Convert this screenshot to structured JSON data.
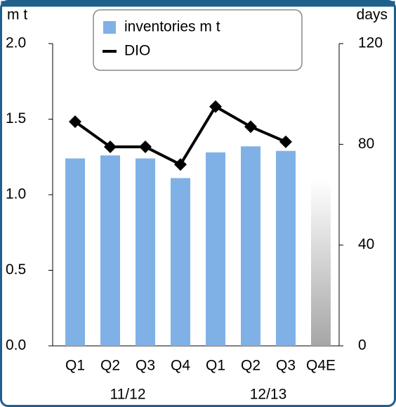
{
  "chart_data": {
    "type": "bar_line",
    "y_label": "m t",
    "y2_label": "days",
    "categories": [
      "Q1",
      "Q2",
      "Q3",
      "Q4",
      "Q1",
      "Q2",
      "Q3",
      "Q4E"
    ],
    "groups": [
      "11/12",
      "12/13"
    ],
    "series": [
      {
        "name": "inventories m t",
        "type": "bar",
        "color": "#7fb1e6",
        "estimate_color": "#a6a6a6",
        "values": [
          1.24,
          1.26,
          1.24,
          1.11,
          1.28,
          1.32,
          1.29,
          1.1
        ]
      },
      {
        "name": "DIO",
        "type": "line",
        "axis": "y2",
        "color": "#000000",
        "values": [
          89,
          79,
          79,
          72,
          95,
          87,
          81,
          null
        ]
      }
    ],
    "ylim": [
      0,
      2
    ],
    "yticks": [
      {
        "value": 0,
        "label": "0.0"
      },
      {
        "value": 0.5,
        "label": "0.5"
      },
      {
        "value": 1,
        "label": "1.0"
      },
      {
        "value": 1.5,
        "label": "1.5"
      },
      {
        "value": 2,
        "label": "2.0"
      }
    ],
    "y2lim": [
      0,
      120
    ],
    "y2ticks": [
      0,
      40,
      80,
      120
    ],
    "grid": false
  }
}
